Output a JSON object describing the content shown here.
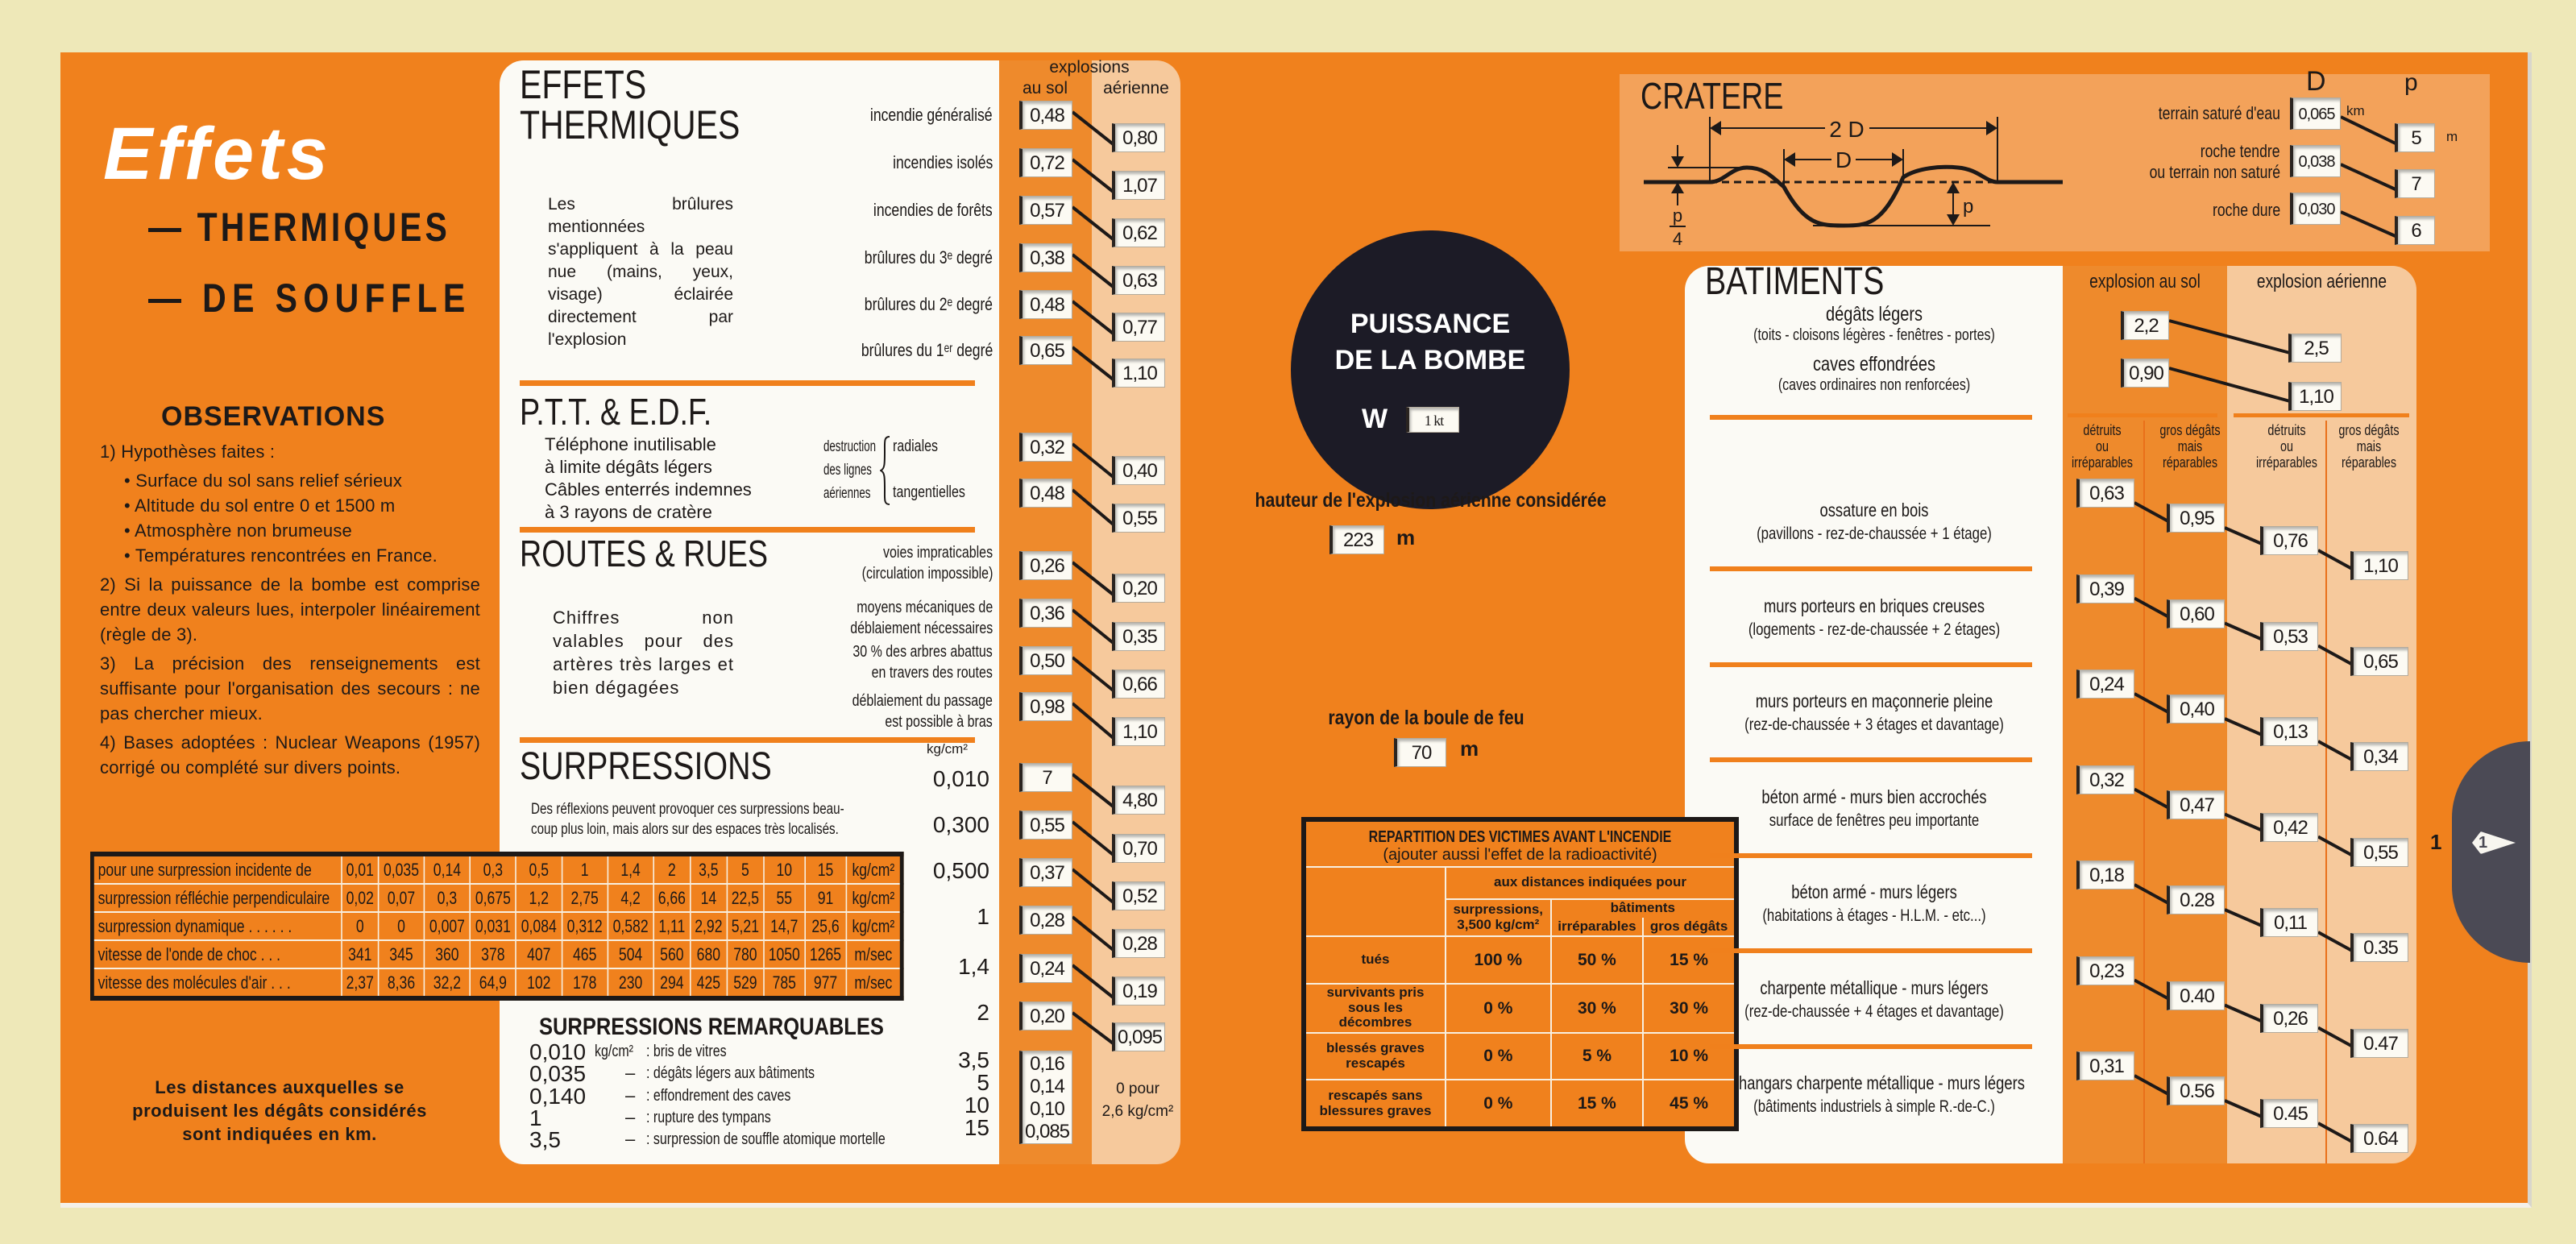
{
  "left_panel": {
    "title": "Effets",
    "subtitle_1": "— THERMIQUES",
    "subtitle_2": "— DE SOUFFLE",
    "observations_title": "OBSERVATIONS",
    "obs_1": "1) Hypothèses faites :",
    "obs_1_bullets": [
      "• Surface du sol sans relief sérieux",
      "• Altitude du sol entre 0 et 1500 m",
      "• Atmosphère non brumeuse",
      "• Températures rencontrées en France."
    ],
    "obs_2": "2) Si la puissance de la bombe est comprise entre deux valeurs lues, interpoler linéairement (règle de 3).",
    "obs_3": "3) La précision des renseignements est suffisante pour l'organisation des secours : ne pas chercher mieux.",
    "obs_4": "4) Bases adoptées : Nuclear Weapons (1957) corrigé ou complété sur divers points.",
    "footer": [
      "Les distances auxquelles se",
      "produisent les dégâts considérés",
      "sont indiquées en km."
    ]
  },
  "shock_table": {
    "rows": [
      {
        "label": "pour une surpression incidente de",
        "values": [
          "0,01",
          "0,035",
          "0,14",
          "0,3",
          "0,5",
          "1",
          "1,4",
          "2",
          "3,5",
          "5",
          "10",
          "15"
        ],
        "unit": "kg/cm²"
      },
      {
        "label": "surpression réfléchie perpendiculaire",
        "values": [
          "0,02",
          "0,07",
          "0,3",
          "0,675",
          "1,2",
          "2,75",
          "4,2",
          "6,66",
          "14",
          "22,5",
          "55",
          "91"
        ],
        "unit": "kg/cm²"
      },
      {
        "label": "surpression dynamique . . . . . .",
        "values": [
          "0",
          "0",
          "0,007",
          "0,031",
          "0,084",
          "0,312",
          "0,582",
          "1,11",
          "2,92",
          "5,21",
          "14,7",
          "25,6"
        ],
        "unit": "kg/cm²"
      },
      {
        "label": "vitesse de l'onde de choc . . .",
        "values": [
          "341",
          "345",
          "360",
          "378",
          "407",
          "465",
          "504",
          "560",
          "680",
          "780",
          "1050",
          "1265"
        ],
        "unit": "m/sec"
      },
      {
        "label": "vitesse des molécules d'air . . .",
        "values": [
          "2,37",
          "8,36",
          "32,2",
          "64,9",
          "102",
          "178",
          "230",
          "294",
          "425",
          "529",
          "785",
          "977"
        ],
        "unit": "m/sec"
      }
    ]
  },
  "thermal": {
    "title_1": "EFFETS",
    "title_2": "THERMIQUES",
    "header": "explosions",
    "col_ground": "au sol",
    "col_air": "aérienne",
    "note": "Les brûlures mentionnées s'appliquent à la peau nue (mains, yeux, visage) éclairée directement par l'explosion",
    "rows": [
      {
        "label": "incendie généralisé",
        "ground": "0,48",
        "air": "0,80"
      },
      {
        "label": "incendies isolés",
        "ground": "0,72",
        "air": "1,07"
      },
      {
        "label": "incendies de forêts",
        "ground": "0,57",
        "air": "0,62"
      },
      {
        "label": "brûlures du 3ᵉ degré",
        "ground": "0,38",
        "air": "0,63"
      },
      {
        "label": "brûlures du 2ᵉ degré",
        "ground": "0,48",
        "air": "0,77"
      },
      {
        "label": "brûlures du 1ᵉʳ degré",
        "ground": "0,65",
        "air": "1,10"
      }
    ]
  },
  "ptt": {
    "title": "P.T.T. & E.D.F.",
    "note": [
      "Téléphone inutilisable",
      "à limite dégâts légers",
      "Câbles enterrés indemnes",
      "à 3 rayons de cratère"
    ],
    "group": [
      "destruction",
      "des lignes",
      "aériennes"
    ],
    "rows": [
      {
        "label": "radiales",
        "ground": "0,32",
        "air": "0,40"
      },
      {
        "label": "tangentielles",
        "ground": "0,48",
        "air": "0,55"
      }
    ]
  },
  "routes": {
    "title": "ROUTES & RUES",
    "note": "Chiffres non valables pour des artères très larges et bien dégagées",
    "rows": [
      {
        "lines": [
          "voies impraticables",
          "(circulation impossible)"
        ],
        "ground": "0,26",
        "air": "0,20"
      },
      {
        "lines": [
          "moyens mécaniques de",
          "déblaiement nécessaires"
        ],
        "ground": "0,36",
        "air": "0,35"
      },
      {
        "lines": [
          "30 % des arbres abattus",
          "en travers des routes"
        ],
        "ground": "0,50",
        "air": "0,66"
      },
      {
        "lines": [
          "déblaiement du passage",
          "est possible à bras"
        ],
        "ground": "0,98",
        "air": "1,10"
      }
    ]
  },
  "surpressions": {
    "title": "SURPRESSIONS",
    "unit": "kg/cm²",
    "note": [
      "Des réflexions peuvent provoquer ces surpressions beau-",
      "coup plus loin, mais alors sur des espaces très localisés."
    ],
    "rows": [
      {
        "pressure": "0,010",
        "ground": "7",
        "air": "4,80"
      },
      {
        "pressure": "0,300",
        "ground": "0,55",
        "air": "0,70"
      },
      {
        "pressure": "0,500",
        "ground": "0,37",
        "air": "0,52"
      },
      {
        "pressure": "1",
        "ground": "0,28",
        "air": "0,28"
      },
      {
        "pressure": "1,4",
        "ground": "0,24",
        "air": "0,19"
      },
      {
        "pressure": "2",
        "ground": "0,20",
        "air": "0,095"
      },
      {
        "pressure": "3,5",
        "ground": "0,16"
      },
      {
        "pressure": "5",
        "ground": "0,14"
      },
      {
        "pressure": "10",
        "ground": "0,10"
      },
      {
        "pressure": "15",
        "ground": "0,085"
      }
    ],
    "air_note": [
      "0 pour",
      "2,6 kg/cm²"
    ]
  },
  "remarkable": {
    "title": "SURPRESSIONS REMARQUABLES",
    "items": [
      {
        "value": "0,010",
        "unit": "kg/cm²",
        "dash": "",
        "text": ": bris de vitres"
      },
      {
        "value": "0,035",
        "unit": "",
        "dash": "–",
        "text": ": dégâts légers aux bâtiments"
      },
      {
        "value": "0,140",
        "unit": "",
        "dash": "–",
        "text": ": effondrement des caves"
      },
      {
        "value": "1",
        "unit": "",
        "dash": "–",
        "text": ": rupture des tympans"
      },
      {
        "value": "3,5",
        "unit": "",
        "dash": "–",
        "text": ": surpression de souffle atomique mortelle"
      }
    ]
  },
  "bomb": {
    "title_1": "PUISSANCE",
    "title_2": "DE LA BOMBE",
    "w_label": "W",
    "yield": "1 kt",
    "height_label": "hauteur de l'explosion aérienne considérée",
    "height_value": "223",
    "height_unit": "m",
    "fireball_label": "rayon de la boule de feu",
    "fireball_value": "70",
    "fireball_unit": "m"
  },
  "victims": {
    "title": "REPARTITION DES VICTIMES AVANT L'INCENDIE",
    "subtitle": "(ajouter aussi l'effet de la radioactivité)",
    "header": "aux distances indiquées pour",
    "col1_a": "surpressions,",
    "col1_b": "3,500 kg/cm²",
    "buildings": "bâtiments",
    "col2": "irréparables",
    "col3": "gros dégâts",
    "rows": [
      {
        "label": "tués",
        "values": [
          "100 %",
          "50 %",
          "15 %"
        ]
      },
      {
        "label": "survivants pris sous les décombres",
        "values": [
          "0 %",
          "30 %",
          "30 %"
        ]
      },
      {
        "label": "blessés graves rescapés",
        "values": [
          "0 %",
          "5 %",
          "10 %"
        ]
      },
      {
        "label": "rescapés sans blessures graves",
        "values": [
          "0 %",
          "15 %",
          "45 %"
        ]
      }
    ]
  },
  "crater": {
    "title": "CRATERE",
    "two_d": "2 D",
    "d": "D",
    "p": "p",
    "p_num": "p",
    "p_den": "4",
    "col_d": "D",
    "col_p": "p",
    "unit_d": "km",
    "unit_p": "m",
    "rows": [
      {
        "lines": [
          "terrain saturé d'eau"
        ],
        "d": "0,065",
        "p": "5"
      },
      {
        "lines": [
          "roche tendre",
          "ou terrain non saturé"
        ],
        "d": "0,038",
        "p": "7"
      },
      {
        "lines": [
          "roche dure"
        ],
        "d": "0,030",
        "p": "6"
      }
    ]
  },
  "buildings": {
    "title": "BATIMENTS",
    "col_ground": "explosion au sol",
    "col_air": "explosion aérienne",
    "light": [
      {
        "label": "dégâts légers",
        "sub": "(toits - cloisons légères - fenêtres - portes)",
        "ground": "2,2",
        "air": "2,5"
      },
      {
        "label": "caves effondrées",
        "sub": "(caves ordinaires non renforcées)",
        "ground": "0,90",
        "air": "1,10"
      }
    ],
    "subheaders": [
      [
        "détruits",
        "ou",
        "irréparables"
      ],
      [
        "gros dégâts",
        "mais",
        "réparables"
      ],
      [
        "détruits",
        "ou",
        "irréparables"
      ],
      [
        "gros dégâts",
        "mais",
        "réparables"
      ]
    ],
    "rows": [
      {
        "label": "ossature en bois",
        "sub": "(pavillons - rez-de-chaussée + 1 étage)",
        "values": [
          "0,63",
          "0,95",
          "0,76",
          "1,10"
        ]
      },
      {
        "label": "murs porteurs en briques creuses",
        "sub": "(logements - rez-de-chaussée + 2 étages)",
        "values": [
          "0,39",
          "0,60",
          "0,53",
          "0,65"
        ]
      },
      {
        "label": "murs porteurs en maçonnerie pleine",
        "sub": "(rez-de-chaussée + 3 étages et davantage)",
        "values": [
          "0,24",
          "0,40",
          "0,13",
          "0,34"
        ]
      },
      {
        "label": "béton armé - murs bien accrochés",
        "sub": "surface de fenêtres peu importante",
        "values": [
          "0,32",
          "0,47",
          "0,42",
          "0,55"
        ]
      },
      {
        "label": "béton armé - murs légers",
        "sub": "(habitations à étages - H.L.M. - etc...)",
        "values": [
          "0,18",
          "0.28",
          "0,11",
          "0.35"
        ]
      },
      {
        "label": "charpente métallique - murs légers",
        "sub": "(rez-de-chaussée + 4 étages et davantage)",
        "values": [
          "0,23",
          "0.40",
          "0,26",
          "0.47"
        ]
      },
      {
        "label": "hangars charpente métallique - murs légers",
        "sub": "(bâtiments industriels à simple R.-de-C.)",
        "values": [
          "0,31",
          "0.56",
          "0.45",
          "0.64"
        ]
      }
    ]
  },
  "slider": {
    "index_label": "1",
    "tab_label": "1"
  },
  "colors": {
    "orange": "#f0811d",
    "ground_column": "#ee8a2c",
    "air_column": "#f6c99c",
    "panel": "#fbfaf5",
    "dark": "#1d1918",
    "slider_tab": "#4b4a55"
  }
}
